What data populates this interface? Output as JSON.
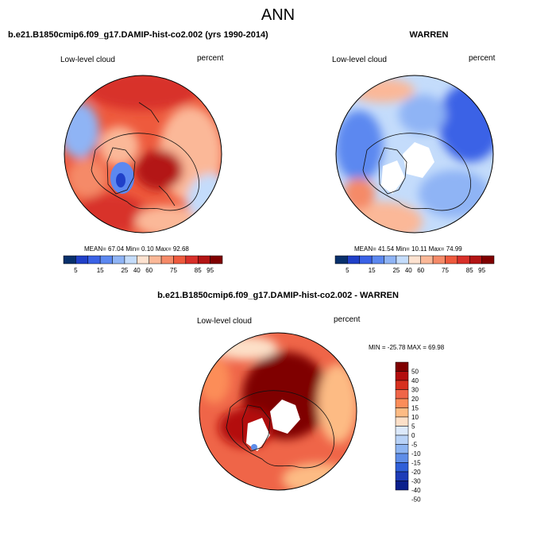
{
  "figure": {
    "title": "ANN",
    "panel_left_title": "b.e21.B1850cmip6.f09_g17.DAMIP-hist-co2.002 (yrs 1990-2014)",
    "panel_right_title": "WARREN",
    "panel_diff_title": "b.e21.B1850cmip6.f09_g17.DAMIP-hist-co2.002 - WARREN",
    "variable": "Low-level cloud",
    "units": "percent"
  },
  "chart_data": [
    {
      "type": "heatmap",
      "projection": "north polar stereographic",
      "title": "b.e21.B1850cmip6.f09_g17.DAMIP-hist-co2.002 (yrs 1990-2014)",
      "left_label": "Low-level cloud",
      "right_label": "percent",
      "stats_text": "MEAN=  67.04   Min=    0.10   Max=  92.68",
      "mean": 67.04,
      "min": 0.1,
      "max": 92.68,
      "colorbar_levels": [
        "5",
        "15",
        "25",
        "40",
        "60",
        "75",
        "85",
        "95"
      ]
    },
    {
      "type": "heatmap",
      "projection": "north polar stereographic",
      "title": "WARREN",
      "left_label": "Low-level cloud",
      "right_label": "percent",
      "stats_text": "MEAN=  41.54   Min=   10.11   Max=  74.99",
      "mean": 41.54,
      "min": 10.11,
      "max": 74.99,
      "colorbar_levels": [
        "5",
        "15",
        "25",
        "40",
        "60",
        "75",
        "85",
        "95"
      ]
    },
    {
      "type": "heatmap",
      "projection": "north polar stereographic",
      "title": "b.e21.B1850cmip6.f09_g17.DAMIP-hist-co2.002 - WARREN",
      "left_label": "Low-level cloud",
      "right_label": "percent",
      "stats_text": "MIN = -25.78 MAX =  69.98",
      "min": -25.78,
      "max": 69.98,
      "colorbar_levels": [
        "50",
        "40",
        "30",
        "20",
        "15",
        "10",
        "5",
        "0",
        "-5",
        "-10",
        "-15",
        "-20",
        "-30",
        "-40",
        "-50"
      ]
    }
  ],
  "colors": {
    "seq_palette": [
      "#08306b",
      "#2040c8",
      "#3a62e6",
      "#5c88f0",
      "#8fb4f5",
      "#c4dcfb",
      "#fde2d0",
      "#fbb898",
      "#f58a68",
      "#ee5a3d",
      "#d8302a",
      "#b31414",
      "#800000"
    ],
    "div_palette": [
      "#7f0000",
      "#b30d0d",
      "#d7301f",
      "#ef6548",
      "#fc8d59",
      "#fdbb84",
      "#fde0c8",
      "#dce9fb",
      "#b8d2f7",
      "#8eb5f2",
      "#5f8ee8",
      "#2f5fd8",
      "#1e3cb8",
      "#0a1f8c"
    ],
    "land_outline": "#111111",
    "missing": "#ffffff"
  }
}
